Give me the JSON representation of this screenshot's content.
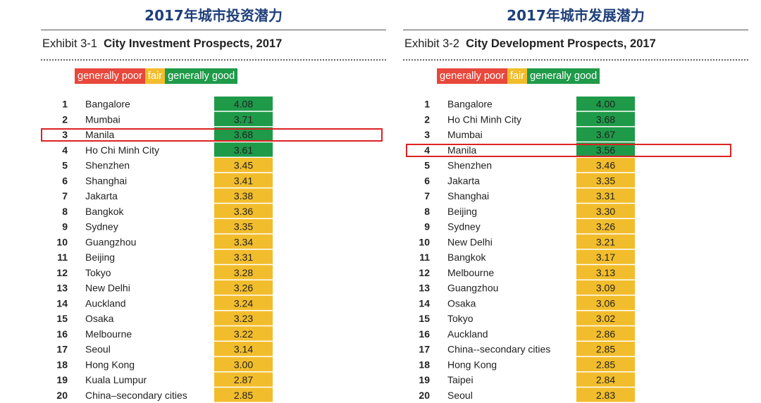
{
  "colors": {
    "poor": "#e8473b",
    "fair": "#f2bd2c",
    "good": "#1e9a49",
    "title": "#1f3f7a",
    "highlight": "#dd2222"
  },
  "chart_data": [
    {
      "type": "table",
      "header_title": "2017年城市投资潜力",
      "exhibit_label": "Exhibit 3-1",
      "title": "City Investment Prospects, 2017",
      "legend": [
        "generally poor",
        "fair",
        "generally good"
      ],
      "highlighted_city": "Manila",
      "rows": [
        {
          "rank": "1",
          "city": "Bangalore",
          "value": 4.08,
          "rating": "good"
        },
        {
          "rank": "2",
          "city": "Mumbai",
          "value": 3.71,
          "rating": "good"
        },
        {
          "rank": "3",
          "city": "Manila",
          "value": 3.68,
          "rating": "good"
        },
        {
          "rank": "4",
          "city": "Ho Chi Minh City",
          "value": 3.61,
          "rating": "good"
        },
        {
          "rank": "5",
          "city": "Shenzhen",
          "value": 3.45,
          "rating": "fair"
        },
        {
          "rank": "6",
          "city": "Shanghai",
          "value": 3.41,
          "rating": "fair"
        },
        {
          "rank": "7",
          "city": "Jakarta",
          "value": 3.38,
          "rating": "fair"
        },
        {
          "rank": "8",
          "city": "Bangkok",
          "value": 3.36,
          "rating": "fair"
        },
        {
          "rank": "9",
          "city": "Sydney",
          "value": 3.35,
          "rating": "fair"
        },
        {
          "rank": "10",
          "city": "Guangzhou",
          "value": 3.34,
          "rating": "fair"
        },
        {
          "rank": "11",
          "city": "Beijing",
          "value": 3.31,
          "rating": "fair"
        },
        {
          "rank": "12",
          "city": "Tokyo",
          "value": 3.28,
          "rating": "fair"
        },
        {
          "rank": "13",
          "city": "New Delhi",
          "value": 3.26,
          "rating": "fair"
        },
        {
          "rank": "14",
          "city": "Auckland",
          "value": 3.24,
          "rating": "fair"
        },
        {
          "rank": "15",
          "city": "Osaka",
          "value": 3.23,
          "rating": "fair"
        },
        {
          "rank": "16",
          "city": "Melbourne",
          "value": 3.22,
          "rating": "fair"
        },
        {
          "rank": "17",
          "city": "Seoul",
          "value": 3.14,
          "rating": "fair"
        },
        {
          "rank": "18",
          "city": "Hong Kong",
          "value": 3.0,
          "rating": "fair"
        },
        {
          "rank": "19",
          "city": "Kuala Lumpur",
          "value": 2.87,
          "rating": "fair"
        },
        {
          "rank": "20",
          "city": "China–secondary cities",
          "value": 2.85,
          "rating": "fair"
        }
      ]
    },
    {
      "type": "table",
      "header_title": "2017年城市发展潜力",
      "exhibit_label": "Exhibit 3-2",
      "title": "City Development Prospects, 2017",
      "legend": [
        "generally poor",
        "fair",
        "generally good"
      ],
      "highlighted_city": "Manila",
      "rows": [
        {
          "rank": "1",
          "city": "Bangalore",
          "value": 4.0,
          "rating": "good"
        },
        {
          "rank": "2",
          "city": "Ho Chi Minh City",
          "value": 3.68,
          "rating": "good"
        },
        {
          "rank": "3",
          "city": "Mumbai",
          "value": 3.67,
          "rating": "good"
        },
        {
          "rank": "4",
          "city": "Manila",
          "value": 3.56,
          "rating": "good"
        },
        {
          "rank": "5",
          "city": "Shenzhen",
          "value": 3.46,
          "rating": "fair"
        },
        {
          "rank": "6",
          "city": "Jakarta",
          "value": 3.35,
          "rating": "fair"
        },
        {
          "rank": "7",
          "city": "Shanghai",
          "value": 3.31,
          "rating": "fair"
        },
        {
          "rank": "8",
          "city": "Beijing",
          "value": 3.3,
          "rating": "fair"
        },
        {
          "rank": "9",
          "city": "Sydney",
          "value": 3.26,
          "rating": "fair"
        },
        {
          "rank": "10",
          "city": "New Delhi",
          "value": 3.21,
          "rating": "fair"
        },
        {
          "rank": "11",
          "city": "Bangkok",
          "value": 3.17,
          "rating": "fair"
        },
        {
          "rank": "12",
          "city": "Melbourne",
          "value": 3.13,
          "rating": "fair"
        },
        {
          "rank": "13",
          "city": "Guangzhou",
          "value": 3.09,
          "rating": "fair"
        },
        {
          "rank": "14",
          "city": "Osaka",
          "value": 3.06,
          "rating": "fair"
        },
        {
          "rank": "15",
          "city": "Tokyo",
          "value": 3.02,
          "rating": "fair"
        },
        {
          "rank": "16",
          "city": "Auckland",
          "value": 2.86,
          "rating": "fair"
        },
        {
          "rank": "17",
          "city": "China--secondary cities",
          "value": 2.85,
          "rating": "fair"
        },
        {
          "rank": "18",
          "city": "Hong Kong",
          "value": 2.85,
          "rating": "fair"
        },
        {
          "rank": "19",
          "city": "Taipei",
          "value": 2.84,
          "rating": "fair"
        },
        {
          "rank": "20",
          "city": "Seoul",
          "value": 2.83,
          "rating": "fair"
        }
      ]
    }
  ]
}
